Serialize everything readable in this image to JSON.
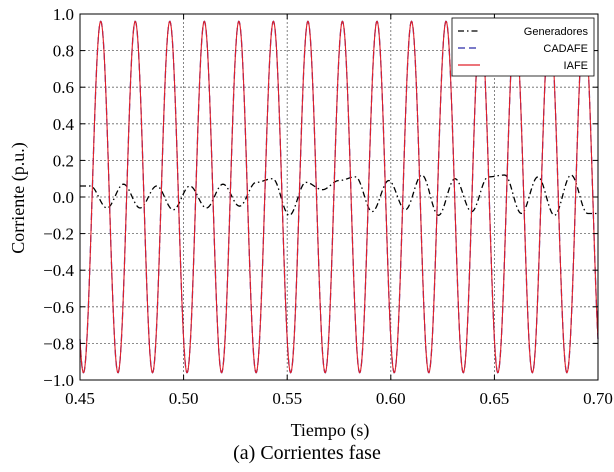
{
  "caption": "(a)   Corrientes fase",
  "chart_data": {
    "type": "line",
    "xlabel": "Tiempo (s)",
    "ylabel": "Corriente (p.u.)",
    "xlim": [
      0.45,
      0.7
    ],
    "ylim": [
      -1.0,
      1.0
    ],
    "xticks": [
      0.45,
      0.5,
      0.55,
      0.6,
      0.65,
      0.7
    ],
    "xtick_labels": [
      "0.45",
      "0.50",
      "0.55",
      "0.60",
      "0.65",
      "0.70"
    ],
    "yticks": [
      1.0,
      0.8,
      0.6,
      0.4,
      0.2,
      0.0,
      -0.2,
      -0.4,
      -0.6,
      -0.8,
      -1.0
    ],
    "ytick_labels": [
      "1.0",
      "0.8",
      "0.6",
      "0.4",
      "0.2",
      "0.0",
      "−0.2",
      "−0.4",
      "−0.6",
      "−0.8",
      "−1.0"
    ],
    "grid": true,
    "legend_position": "top-right",
    "frequency_hz": 60,
    "series": [
      {
        "name": "Generadores",
        "color": "#000000",
        "style": "dash-dot",
        "x": [
          0.455,
          0.463,
          0.471,
          0.479,
          0.487,
          0.495,
          0.503,
          0.511,
          0.519,
          0.527,
          0.535,
          0.543,
          0.551,
          0.559,
          0.567,
          0.575,
          0.583,
          0.591,
          0.599,
          0.607,
          0.615,
          0.623,
          0.631,
          0.639,
          0.647,
          0.655,
          0.663,
          0.671,
          0.679,
          0.687,
          0.695
        ],
        "y": [
          0.06,
          -0.06,
          0.07,
          -0.06,
          0.06,
          -0.07,
          0.06,
          -0.06,
          0.07,
          -0.05,
          0.08,
          0.1,
          -0.1,
          0.08,
          0.04,
          0.09,
          0.11,
          -0.08,
          0.09,
          -0.07,
          0.12,
          -0.1,
          0.1,
          -0.08,
          0.11,
          0.12,
          -0.09,
          0.11,
          -0.1,
          0.12,
          -0.09
        ]
      },
      {
        "name": "CADAFE",
        "color": "#2a2aa8",
        "style": "dashed",
        "amplitude": 0.96,
        "phase_peak_x": 0.46
      },
      {
        "name": "IAFE",
        "color": "#e0202a",
        "style": "solid",
        "amplitude": 0.96,
        "phase_peak_x": 0.46
      }
    ]
  }
}
